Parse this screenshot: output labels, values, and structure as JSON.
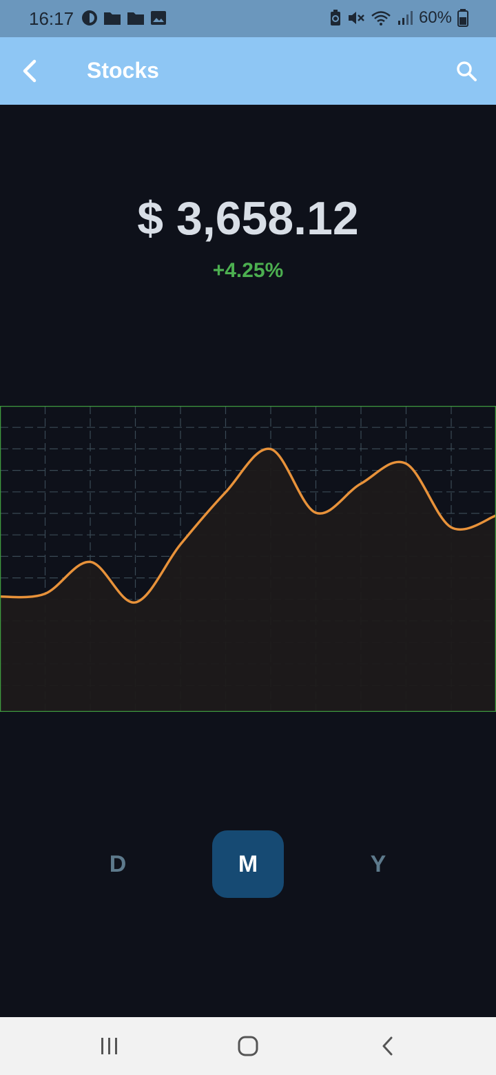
{
  "status_bar": {
    "time": "16:17",
    "battery": "60%",
    "icons": [
      "app-icon",
      "folder-icon",
      "folder-icon",
      "image-icon",
      "battery-saver-icon",
      "mute-icon",
      "wifi-icon",
      "signal-icon",
      "battery-icon"
    ]
  },
  "app_bar": {
    "title": "Stocks",
    "back_icon": "back-arrow-icon",
    "search_icon": "search-icon",
    "color": "#8ec6f4"
  },
  "stock": {
    "price": "$ 3,658.12",
    "change": "+4.25%",
    "change_color": "#4caf50"
  },
  "chart_data": {
    "type": "area",
    "line_color": "#e8923a",
    "grid": true,
    "x": [
      0,
      1,
      2,
      3,
      4,
      5,
      6,
      7,
      8,
      9,
      10,
      11
    ],
    "values": [
      46,
      47,
      58,
      44,
      64,
      82,
      97,
      75,
      85,
      92,
      70,
      74
    ],
    "ylim": [
      0,
      100
    ]
  },
  "range_tabs": {
    "items": [
      {
        "label": "D",
        "active": false
      },
      {
        "label": "M",
        "active": true
      },
      {
        "label": "Y",
        "active": false
      }
    ],
    "active_color": "#164a73"
  },
  "nav_bar": {
    "items": [
      "recent-apps-icon",
      "home-icon",
      "back-icon"
    ]
  }
}
